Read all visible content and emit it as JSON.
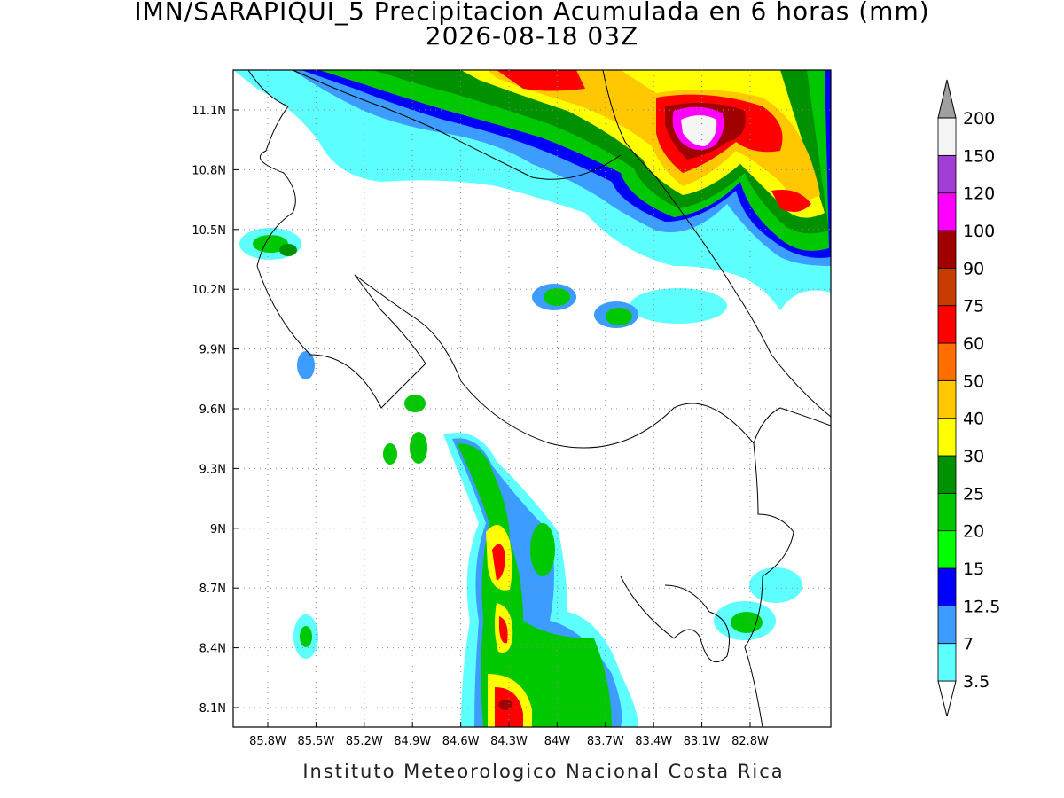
{
  "title": "IMN/SARAPIQUI_5 Precipitacion Acumulada en 6 horas (mm)",
  "subtitle": "2026-08-18 03Z",
  "lat_ticks": [
    "11.1N",
    "10.8N",
    "10.5N",
    "10.2N",
    "9.9N",
    "9.6N",
    "9.3N",
    "9N",
    "8.7N",
    "8.4N",
    "8.1N"
  ],
  "lon_ticks": [
    "85.8W",
    "85.5W",
    "85.2W",
    "84.9W",
    "84.6W",
    "84.3W",
    "84W",
    "83.7W",
    "83.4W",
    "83.1W",
    "82.8W"
  ],
  "colorbar": {
    "levels": [
      3.5,
      7,
      12.5,
      15,
      20,
      25,
      30,
      40,
      50,
      60,
      75,
      90,
      100,
      120,
      150,
      200
    ],
    "colors": [
      "#5effff",
      "#3c9cff",
      "#0000ff",
      "#00ff00",
      "#00c800",
      "#009100",
      "#ffff00",
      "#ffc800",
      "#ff6e00",
      "#ff0000",
      "#c83c00",
      "#a00000",
      "#ff00ff",
      "#a03ed6",
      "#f5f5f5"
    ],
    "under_color": "#ffffff",
    "over_color": "#a0a0a0"
  },
  "footer": "Instituto Meteorologico Nacional Costa Rica"
}
